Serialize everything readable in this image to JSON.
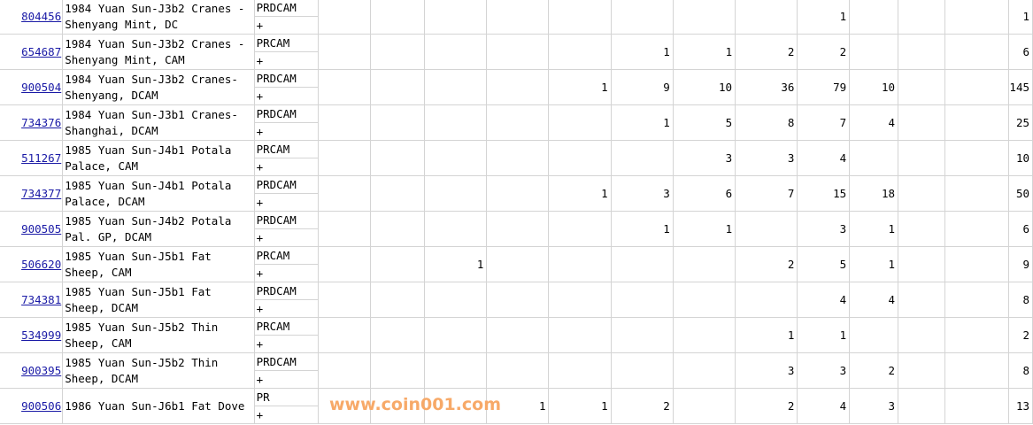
{
  "rows": [
    {
      "id": "804456",
      "desc": "1984 Yuan Sun-J3b2 Cranes - Shenyang Mint, DC",
      "grade": "PRDCAM",
      "plus": "+",
      "counts": [
        "",
        "",
        "",
        "",
        "",
        "",
        "",
        "",
        "1",
        "",
        "",
        ""
      ],
      "total": "1"
    },
    {
      "id": "654687",
      "desc": "1984 Yuan Sun-J3b2 Cranes - Shenyang Mint, CAM",
      "grade": "PRCAM",
      "plus": "+",
      "counts": [
        "",
        "",
        "",
        "",
        "",
        "1",
        "1",
        "2",
        "2",
        "",
        "",
        ""
      ],
      "total": "6"
    },
    {
      "id": "900504",
      "desc": "1984 Yuan Sun-J3b2 Cranes-Shenyang, DCAM",
      "grade": "PRDCAM",
      "plus": "+",
      "counts": [
        "",
        "",
        "",
        "",
        "1",
        "9",
        "10",
        "36",
        "79",
        "10",
        "",
        ""
      ],
      "total": "145"
    },
    {
      "id": "734376",
      "desc": "1984 Yuan Sun-J3b1 Cranes-Shanghai, DCAM",
      "grade": "PRDCAM",
      "plus": "+",
      "counts": [
        "",
        "",
        "",
        "",
        "",
        "1",
        "5",
        "8",
        "7",
        "4",
        "",
        ""
      ],
      "total": "25"
    },
    {
      "id": "511267",
      "desc": "1985 Yuan Sun-J4b1 Potala Palace, CAM",
      "grade": "PRCAM",
      "plus": "+",
      "counts": [
        "",
        "",
        "",
        "",
        "",
        "",
        "3",
        "3",
        "4",
        "",
        "",
        ""
      ],
      "total": "10"
    },
    {
      "id": "734377",
      "desc": "1985 Yuan Sun-J4b1 Potala Palace, DCAM",
      "grade": "PRDCAM",
      "plus": "+",
      "counts": [
        "",
        "",
        "",
        "",
        "1",
        "3",
        "6",
        "7",
        "15",
        "18",
        "",
        ""
      ],
      "total": "50"
    },
    {
      "id": "900505",
      "desc": "1985 Yuan Sun-J4b2 Potala Pal. GP, DCAM",
      "grade": "PRDCAM",
      "plus": "+",
      "counts": [
        "",
        "",
        "",
        "",
        "",
        "1",
        "1",
        "",
        "3",
        "1",
        "",
        ""
      ],
      "total": "6"
    },
    {
      "id": "506620",
      "desc": "1985 Yuan Sun-J5b1 Fat Sheep, CAM",
      "grade": "PRCAM",
      "plus": "+",
      "counts": [
        "",
        "",
        "1",
        "",
        "",
        "",
        "",
        "2",
        "5",
        "1",
        "",
        ""
      ],
      "total": "9"
    },
    {
      "id": "734381",
      "desc": "1985 Yuan Sun-J5b1 Fat Sheep, DCAM",
      "grade": "PRDCAM",
      "plus": "+",
      "counts": [
        "",
        "",
        "",
        "",
        "",
        "",
        "",
        "",
        "4",
        "4",
        "",
        ""
      ],
      "total": "8"
    },
    {
      "id": "534999",
      "desc": "1985 Yuan Sun-J5b2 Thin Sheep, CAM",
      "grade": "PRCAM",
      "plus": "+",
      "counts": [
        "",
        "",
        "",
        "",
        "",
        "",
        "",
        "1",
        "1",
        "",
        "",
        ""
      ],
      "total": "2"
    },
    {
      "id": "900395",
      "desc": "1985 Yuan Sun-J5b2 Thin Sheep, DCAM",
      "grade": "PRDCAM",
      "plus": "+",
      "counts": [
        "",
        "",
        "",
        "",
        "",
        "",
        "",
        "3",
        "3",
        "2",
        "",
        ""
      ],
      "total": "8"
    },
    {
      "id": "900506",
      "desc": "1986 Yuan Sun-J6b1 Fat Dove",
      "grade": "PR",
      "plus": "+",
      "counts": [
        "",
        "",
        "",
        "1",
        "1",
        "2",
        "",
        "2",
        "4",
        "3",
        "",
        ""
      ],
      "total": "13"
    }
  ],
  "watermark": "www.coin001.com",
  "colors": {
    "link": "#1a1aa6",
    "grid": "#d4d4d4",
    "watermark": "#f7a968"
  }
}
